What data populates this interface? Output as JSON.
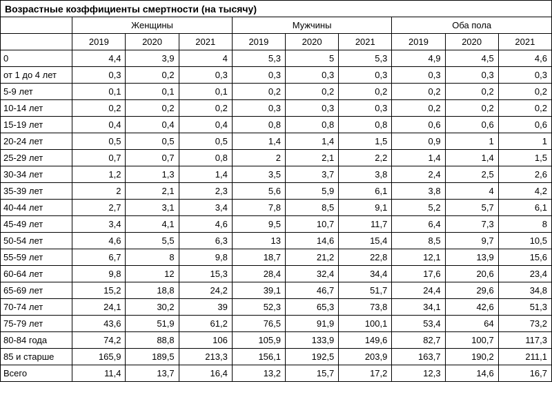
{
  "title": "Возрастные козффициенты смертности (на тысячу)",
  "groups": [
    "Женщины",
    "Мужчины",
    "Оба пола"
  ],
  "years": [
    "2019",
    "2020",
    "2021"
  ],
  "rows": [
    {
      "label": "0",
      "v": [
        "4,4",
        "3,9",
        "4",
        "5,3",
        "5",
        "5,3",
        "4,9",
        "4,5",
        "4,6"
      ]
    },
    {
      "label": "от 1 до 4 лет",
      "v": [
        "0,3",
        "0,2",
        "0,3",
        "0,3",
        "0,3",
        "0,3",
        "0,3",
        "0,3",
        "0,3"
      ]
    },
    {
      "label": "5-9 лет",
      "v": [
        "0,1",
        "0,1",
        "0,1",
        "0,2",
        "0,2",
        "0,2",
        "0,2",
        "0,2",
        "0,2"
      ]
    },
    {
      "label": "10-14 лет",
      "v": [
        "0,2",
        "0,2",
        "0,2",
        "0,3",
        "0,3",
        "0,3",
        "0,2",
        "0,2",
        "0,2"
      ]
    },
    {
      "label": "15-19 лет",
      "v": [
        "0,4",
        "0,4",
        "0,4",
        "0,8",
        "0,8",
        "0,8",
        "0,6",
        "0,6",
        "0,6"
      ]
    },
    {
      "label": "20-24 лет",
      "v": [
        "0,5",
        "0,5",
        "0,5",
        "1,4",
        "1,4",
        "1,5",
        "0,9",
        "1",
        "1"
      ]
    },
    {
      "label": "25-29 лет",
      "v": [
        "0,7",
        "0,7",
        "0,8",
        "2",
        "2,1",
        "2,2",
        "1,4",
        "1,4",
        "1,5"
      ]
    },
    {
      "label": "30-34 лет",
      "v": [
        "1,2",
        "1,3",
        "1,4",
        "3,5",
        "3,7",
        "3,8",
        "2,4",
        "2,5",
        "2,6"
      ]
    },
    {
      "label": "35-39 лет",
      "v": [
        "2",
        "2,1",
        "2,3",
        "5,6",
        "5,9",
        "6,1",
        "3,8",
        "4",
        "4,2"
      ]
    },
    {
      "label": "40-44 лет",
      "v": [
        "2,7",
        "3,1",
        "3,4",
        "7,8",
        "8,5",
        "9,1",
        "5,2",
        "5,7",
        "6,1"
      ]
    },
    {
      "label": "45-49 лет",
      "v": [
        "3,4",
        "4,1",
        "4,6",
        "9,5",
        "10,7",
        "11,7",
        "6,4",
        "7,3",
        "8"
      ]
    },
    {
      "label": "50-54 лет",
      "v": [
        "4,6",
        "5,5",
        "6,3",
        "13",
        "14,6",
        "15,4",
        "8,5",
        "9,7",
        "10,5"
      ]
    },
    {
      "label": "55-59 лет",
      "v": [
        "6,7",
        "8",
        "9,8",
        "18,7",
        "21,2",
        "22,8",
        "12,1",
        "13,9",
        "15,6"
      ]
    },
    {
      "label": "60-64 лет",
      "v": [
        "9,8",
        "12",
        "15,3",
        "28,4",
        "32,4",
        "34,4",
        "17,6",
        "20,6",
        "23,4"
      ]
    },
    {
      "label": "65-69 лет",
      "v": [
        "15,2",
        "18,8",
        "24,2",
        "39,1",
        "46,7",
        "51,7",
        "24,4",
        "29,6",
        "34,8"
      ]
    },
    {
      "label": "70-74 лет",
      "v": [
        "24,1",
        "30,2",
        "39",
        "52,3",
        "65,3",
        "73,8",
        "34,1",
        "42,6",
        "51,3"
      ]
    },
    {
      "label": "75-79 лет",
      "v": [
        "43,6",
        "51,9",
        "61,2",
        "76,5",
        "91,9",
        "100,1",
        "53,4",
        "64",
        "73,2"
      ]
    },
    {
      "label": "80-84 года",
      "v": [
        "74,2",
        "88,8",
        "106",
        "105,9",
        "133,9",
        "149,6",
        "82,7",
        "100,7",
        "117,3"
      ]
    },
    {
      "label": "85 и старше",
      "v": [
        "165,9",
        "189,5",
        "213,3",
        "156,1",
        "192,5",
        "203,9",
        "163,7",
        "190,2",
        "211,1"
      ]
    },
    {
      "label": "Всего",
      "v": [
        "11,4",
        "13,7",
        "16,4",
        "13,2",
        "15,7",
        "17,2",
        "12,3",
        "14,6",
        "16,7"
      ]
    }
  ]
}
